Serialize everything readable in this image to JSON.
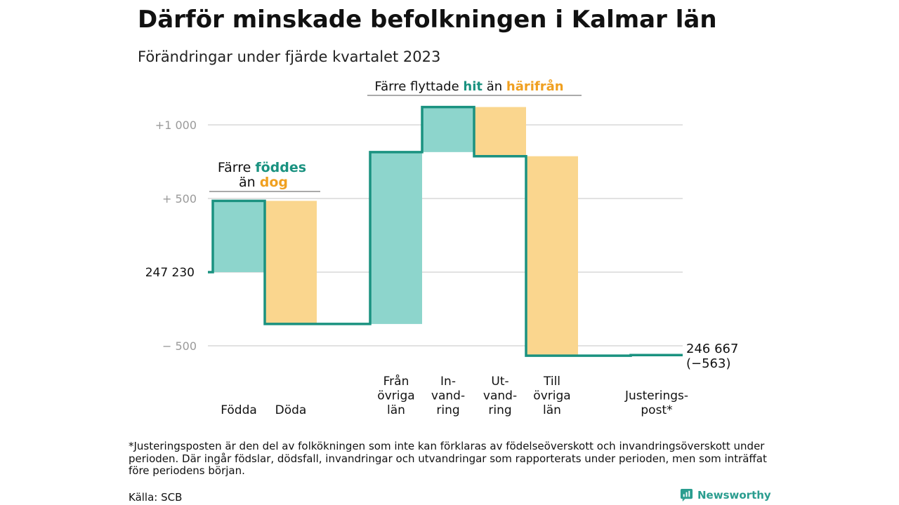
{
  "header": {
    "title": "Därför minskade befolkningen i Kalmar län",
    "subtitle": "Förändringar under fjärde kvartalet 2023"
  },
  "colors": {
    "inflow": "#8dd5cc",
    "outflow": "#fad68e",
    "line": "#1a9280",
    "accent_teal": "#1a9280",
    "accent_orange": "#f0a020",
    "grid": "#d9d9d9",
    "tick": "#9a9a9a"
  },
  "annotations": {
    "birth_death": {
      "line1_a": "Färre",
      "line1_b": "föddes",
      "line2_a": "än",
      "line2_b": "dog"
    },
    "migration": {
      "a": "Färre flyttade",
      "b": "hit",
      "c": "än",
      "d": "härifrån"
    }
  },
  "chart_data": {
    "type": "waterfall",
    "start_value": 247230,
    "start_label": "247  230",
    "end_value": 246667,
    "end_label": "246 667",
    "end_change_label": "(−563)",
    "y_ticks": [
      {
        "value": 1000,
        "label": "+1  000"
      },
      {
        "value": 500,
        "label": "+  500"
      },
      {
        "value": 0,
        "label": ""
      },
      {
        "value": -500,
        "label": "−  500"
      }
    ],
    "grid": true,
    "steps": [
      {
        "name": "Födda",
        "label_lines": [
          "Födda"
        ],
        "change": 484,
        "direction": "in"
      },
      {
        "name": "Döda",
        "label_lines": [
          "Döda"
        ],
        "change": -836,
        "direction": "out"
      },
      {
        "name": "Från övriga län",
        "label_lines": [
          "Från",
          "övriga",
          "län"
        ],
        "change": 1167,
        "direction": "in"
      },
      {
        "name": "Invandring",
        "label_lines": [
          "In-",
          "vand-",
          "ring"
        ],
        "change": 306,
        "direction": "in"
      },
      {
        "name": "Utvandring",
        "label_lines": [
          "Ut-",
          "vand-",
          "ring"
        ],
        "change": -334,
        "direction": "out"
      },
      {
        "name": "Till övriga län",
        "label_lines": [
          "Till",
          "övriga",
          "län"
        ],
        "change": -1354,
        "direction": "out"
      },
      {
        "name": "Justeringspost*",
        "label_lines": [
          "Justerings-",
          "post*"
        ],
        "change": 4,
        "direction": "adjust"
      }
    ]
  },
  "footnote": "*Justeringsposten är den del av folkökningen som inte kan förklaras av födelseöverskott och invandringsöverskott under perioden. Där ingår födslar, dödsfall, invandringar och utvandringar som rapporterats under perioden, men som inträffat före periodens början.",
  "source": "Källa: SCB",
  "brand": {
    "name": "Newsworthy",
    "icon": "newsworthy-logo-icon"
  }
}
